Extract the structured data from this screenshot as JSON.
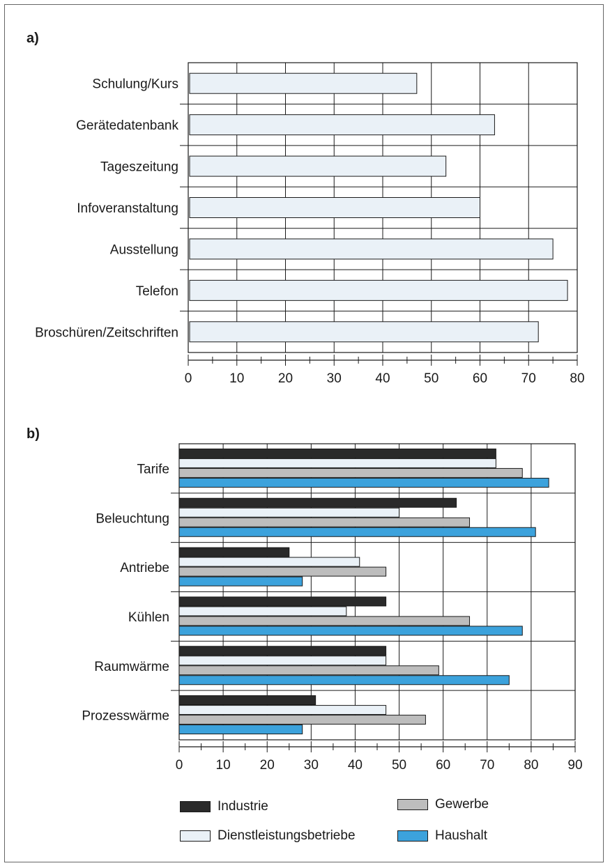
{
  "panels": {
    "a_label": "a)",
    "b_label": "b)"
  },
  "legend": [
    {
      "name": "Industrie",
      "color": "#2a2a2a"
    },
    {
      "name": "Gewerbe",
      "color": "#bdbdbd"
    },
    {
      "name": "Dienstleistungsbetriebe",
      "color": "#eaf1f7"
    },
    {
      "name": "Haushalt",
      "color": "#3ca2dc"
    }
  ],
  "chart_data": [
    {
      "id": "a",
      "type": "bar",
      "orientation": "horizontal",
      "categories": [
        "Schulung/Kurs",
        "Gerätedatenbank",
        "Tageszeitung",
        "Infoveranstaltung",
        "Ausstellung",
        "Telefon",
        "Broschüren/Zeitschriften"
      ],
      "values": [
        47,
        63,
        53,
        60,
        75,
        78,
        72
      ],
      "xlim": [
        0,
        80
      ],
      "xticks": [
        "0",
        "10",
        "20",
        "30",
        "40",
        "50",
        "60",
        "70",
        "80"
      ],
      "bar_color": "#eaf1f7",
      "grid": true
    },
    {
      "id": "b",
      "type": "bar",
      "orientation": "horizontal",
      "categories": [
        "Tarife",
        "Beleuchtung",
        "Antriebe",
        "Kühlen",
        "Raumwärme",
        "Prozesswärme"
      ],
      "series": [
        {
          "name": "Industrie",
          "color": "#2a2a2a",
          "values": [
            72,
            63,
            25,
            47,
            47,
            31
          ]
        },
        {
          "name": "Dienstleistungsbetriebe",
          "color": "#eaf1f7",
          "values": [
            72,
            50,
            41,
            38,
            47,
            47
          ]
        },
        {
          "name": "Gewerbe",
          "color": "#bdbdbd",
          "values": [
            78,
            66,
            47,
            66,
            59,
            56
          ]
        },
        {
          "name": "Haushalt",
          "color": "#3ca2dc",
          "values": [
            84,
            81,
            28,
            78,
            75,
            28
          ]
        }
      ],
      "xlim": [
        0,
        90
      ],
      "xticks": [
        "0",
        "10",
        "20",
        "30",
        "40",
        "50",
        "60",
        "70",
        "80",
        "90"
      ],
      "grid": true,
      "legend_position": "bottom"
    }
  ]
}
